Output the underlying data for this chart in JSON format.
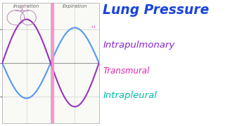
{
  "bg_color": "#ffffff",
  "left_panel_bg": "#f9f9f6",
  "title": "Lung Pressure",
  "subtitle1": "Intrapulmonary",
  "subtitle2": "Transmural",
  "subtitle3": "Intrapleural",
  "title_color": "#1a44dd",
  "subtitle1_color": "#8822cc",
  "subtitle2_color": "#dd22aa",
  "subtitle3_color": "#00bbaa",
  "inspiration_label": "Inspiration",
  "expiration_label": "Expiration",
  "curve_blue_color": "#5599ee",
  "curve_purple_color": "#9933bb",
  "marker_color": "#ff88cc",
  "axis_color": "#999999",
  "grid_color": "#cccccc",
  "ylim": [
    -1.8,
    1.8
  ],
  "xlim": [
    0,
    1
  ]
}
